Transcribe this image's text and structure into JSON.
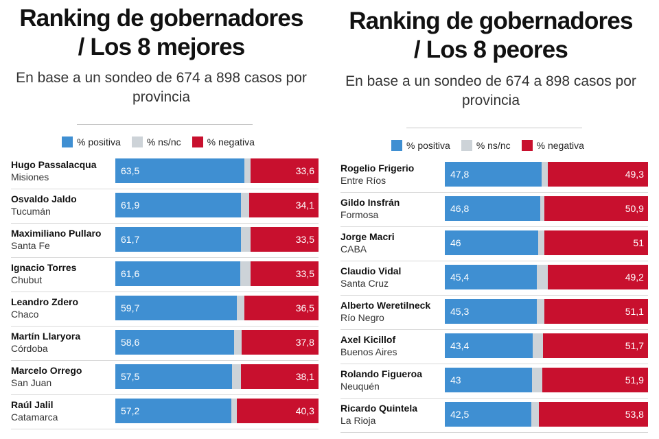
{
  "legend": {
    "positive": "% positiva",
    "nsnc": "% ns/nc",
    "negative": "% negativa"
  },
  "colors": {
    "positive": "#3f8fd2",
    "nsnc": "#cdd3d8",
    "negative": "#c8102e"
  },
  "chart_data": [
    {
      "type": "bar",
      "orientation": "horizontal-stacked",
      "title_line1": "Ranking de gobernadores",
      "title_line2": "/ Los 8 mejores",
      "subtitle_line1": "En base a un sondeo de 674 a 898 casos por",
      "subtitle_line2": "provincia",
      "xlim": [
        0,
        100
      ],
      "legend_position": "top",
      "rows": [
        {
          "name": "Hugo Passalacqua",
          "province": "Misiones",
          "positive": 63.5,
          "negative": 33.6,
          "positive_label": "63,5",
          "negative_label": "33,6"
        },
        {
          "name": "Osvaldo Jaldo",
          "province": "Tucumán",
          "positive": 61.9,
          "negative": 34.1,
          "positive_label": "61,9",
          "negative_label": "34,1"
        },
        {
          "name": "Maximiliano Pullaro",
          "province": "Santa Fe",
          "positive": 61.7,
          "negative": 33.5,
          "positive_label": "61,7",
          "negative_label": "33,5"
        },
        {
          "name": "Ignacio Torres",
          "province": "Chubut",
          "positive": 61.6,
          "negative": 33.5,
          "positive_label": "61,6",
          "negative_label": "33,5"
        },
        {
          "name": "Leandro Zdero",
          "province": "Chaco",
          "positive": 59.7,
          "negative": 36.5,
          "positive_label": "59,7",
          "negative_label": "36,5"
        },
        {
          "name": "Martín Llaryora",
          "province": "Córdoba",
          "positive": 58.6,
          "negative": 37.8,
          "positive_label": "58,6",
          "negative_label": "37,8"
        },
        {
          "name": "Marcelo Orrego",
          "province": "San Juan",
          "positive": 57.5,
          "negative": 38.1,
          "positive_label": "57,5",
          "negative_label": "38,1"
        },
        {
          "name": "Raúl Jalil",
          "province": "Catamarca",
          "positive": 57.2,
          "negative": 40.3,
          "positive_label": "57,2",
          "negative_label": "40,3"
        }
      ]
    },
    {
      "type": "bar",
      "orientation": "horizontal-stacked",
      "title_line1": "Ranking de gobernadores",
      "title_line2": "/ Los 8 peores",
      "subtitle_line1": "En base a un sondeo de 674 a 898 casos por",
      "subtitle_line2": "provincia",
      "xlim": [
        0,
        100
      ],
      "legend_position": "top",
      "rows": [
        {
          "name": "Rogelio Frigerio",
          "province": "Entre Ríos",
          "positive": 47.8,
          "negative": 49.3,
          "positive_label": "47,8",
          "negative_label": "49,3"
        },
        {
          "name": "Gildo Insfrán",
          "province": "Formosa",
          "positive": 46.8,
          "negative": 50.9,
          "positive_label": "46,8",
          "negative_label": "50,9"
        },
        {
          "name": "Jorge Macri",
          "province": "CABA",
          "positive": 46,
          "negative": 51,
          "positive_label": "46",
          "negative_label": "51"
        },
        {
          "name": "Claudio Vidal",
          "province": "Santa Cruz",
          "positive": 45.4,
          "negative": 49.2,
          "positive_label": "45,4",
          "negative_label": "49,2"
        },
        {
          "name": "Alberto Weretilneck",
          "province": "Río Negro",
          "positive": 45.3,
          "negative": 51.1,
          "positive_label": "45,3",
          "negative_label": "51,1"
        },
        {
          "name": "Axel Kicillof",
          "province": "Buenos Aires",
          "positive": 43.4,
          "negative": 51.7,
          "positive_label": "43,4",
          "negative_label": "51,7"
        },
        {
          "name": "Rolando Figueroa",
          "province": "Neuquén",
          "positive": 43,
          "negative": 51.9,
          "positive_label": "43",
          "negative_label": "51,9"
        },
        {
          "name": "Ricardo Quintela",
          "province": "La Rioja",
          "positive": 42.5,
          "negative": 53.8,
          "positive_label": "42,5",
          "negative_label": "53,8"
        }
      ]
    }
  ]
}
